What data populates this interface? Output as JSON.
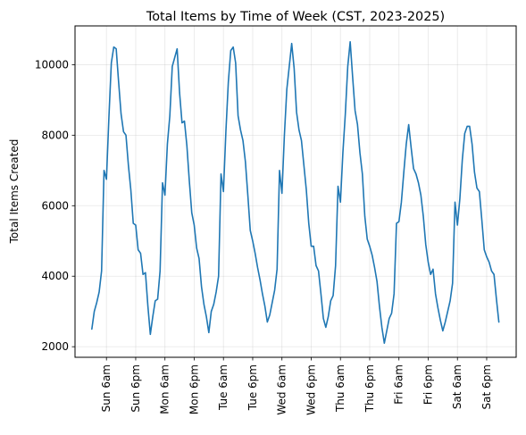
{
  "chart_data": {
    "type": "line",
    "title": "Total Items by Time of Week (CST, 2023-2025)",
    "xlabel": "",
    "ylabel": "Total Items Created",
    "x_tick_labels": [
      "Sun 6am",
      "Sun 6pm",
      "Mon 6am",
      "Mon 6pm",
      "Tue 6am",
      "Tue 6pm",
      "Wed 6am",
      "Wed 6pm",
      "Thu 6am",
      "Thu 6pm",
      "Fri 6am",
      "Fri 6pm",
      "Sat 6am",
      "Sat 6pm"
    ],
    "x_tick_hours": [
      6,
      18,
      30,
      42,
      54,
      66,
      78,
      90,
      102,
      114,
      126,
      138,
      150,
      162
    ],
    "xlim": [
      -6.9,
      174.1
    ],
    "ylim": [
      1700,
      11100
    ],
    "y_ticks": [
      2000,
      4000,
      6000,
      8000,
      10000
    ],
    "grid": true,
    "color": "#1f77b4",
    "series": [
      {
        "x_unit": "hour of week (from Sunday 12am)",
        "values": [
          2500,
          3000,
          3250,
          3550,
          4150,
          7000,
          6750,
          8500,
          10050,
          10500,
          10450,
          9500,
          8600,
          8100,
          8000,
          7150,
          6450,
          5500,
          5450,
          4750,
          4650,
          4050,
          4100,
          3150,
          2350,
          2850,
          3300,
          3350,
          4150,
          6650,
          6300,
          7750,
          8550,
          9950,
          10200,
          10450,
          9200,
          8350,
          8400,
          7700,
          6700,
          5800,
          5450,
          4800,
          4500,
          3700,
          3200,
          2850,
          2400,
          3000,
          3200,
          3550,
          4000,
          6900,
          6400,
          8100,
          9500,
          10400,
          10500,
          10050,
          8550,
          8150,
          7850,
          7250,
          6300,
          5300,
          5000,
          4650,
          4250,
          3900,
          3500,
          3150,
          2700,
          2900,
          3250,
          3600,
          4200,
          7000,
          6350,
          8000,
          9300,
          9950,
          10600,
          9900,
          8650,
          8150,
          7850,
          7150,
          6450,
          5500,
          4850,
          4850,
          4300,
          4150,
          3500,
          2800,
          2550,
          2850,
          3300,
          3450,
          4300,
          6550,
          6100,
          7500,
          8600,
          9950,
          10650,
          9650,
          8700,
          8300,
          7500,
          6900,
          5700,
          5050,
          4850,
          4600,
          4250,
          3850,
          3150,
          2550,
          2100,
          2450,
          2800,
          2950,
          3500,
          5500,
          5550,
          6100,
          6950,
          7750,
          8300,
          7650,
          7050,
          6900,
          6650,
          6300,
          5700,
          4900,
          4400,
          4050,
          4200,
          3500,
          3100,
          2750,
          2450,
          2700,
          3000,
          3300,
          3800,
          6100,
          5450,
          6200,
          7300,
          8050,
          8250,
          8250,
          7750,
          6950,
          6500,
          6400,
          5600,
          4750,
          4550,
          4400,
          4150,
          4050,
          3350,
          2700
        ]
      }
    ]
  }
}
